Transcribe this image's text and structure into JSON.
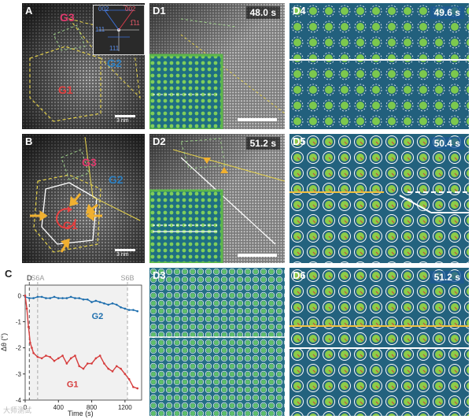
{
  "panels": {
    "A": {
      "label": "A",
      "grains": [
        "G3",
        "G2",
        "G1"
      ],
      "scale": "3 nm",
      "inset": {
        "labels": [
          "002",
          "̅002",
          "111",
          "1̅̅11",
          "111"
        ]
      }
    },
    "B": {
      "label": "B",
      "grains": [
        "G3",
        "G2",
        "G1"
      ],
      "scale": "3 nm"
    },
    "D1": {
      "label": "D1",
      "time": "48.0 s"
    },
    "D2": {
      "label": "D2",
      "time": "51.2 s"
    },
    "D3": {
      "label": "D3"
    },
    "D4": {
      "label": "D4",
      "time": "49.6 s"
    },
    "D5": {
      "label": "D5",
      "time": "50.4 s"
    },
    "D6": {
      "label": "D6",
      "time": "51.2 s"
    }
  },
  "chart_data": {
    "type": "line",
    "panel_label": "C",
    "xlabel": "Time (s)",
    "ylabel": "Δθ (°)",
    "xlim": [
      0,
      1400
    ],
    "ylim": [
      -4,
      0.4
    ],
    "xticks": [
      0,
      400,
      800,
      1200
    ],
    "yticks": [
      0,
      -1,
      -2,
      -3,
      -4
    ],
    "markers": [
      {
        "label": "D",
        "x": 50
      },
      {
        "label": "S6A",
        "x": 150
      },
      {
        "label": "S6B",
        "x": 1230
      }
    ],
    "series": [
      {
        "name": "G2",
        "color": "#1f6fae",
        "x": [
          0,
          50,
          100,
          150,
          200,
          250,
          300,
          350,
          400,
          450,
          500,
          550,
          600,
          650,
          700,
          750,
          800,
          850,
          900,
          950,
          1000,
          1050,
          1100,
          1150,
          1200,
          1250,
          1300,
          1350
        ],
        "y": [
          -0.05,
          -0.1,
          -0.1,
          -0.05,
          -0.05,
          -0.1,
          -0.1,
          -0.05,
          -0.1,
          -0.1,
          -0.1,
          -0.05,
          -0.1,
          -0.1,
          -0.15,
          -0.15,
          -0.25,
          -0.2,
          -0.25,
          -0.3,
          -0.35,
          -0.3,
          -0.35,
          -0.45,
          -0.5,
          -0.55,
          -0.55,
          -0.6
        ]
      },
      {
        "name": "G1",
        "color": "#d63c3c",
        "x": [
          0,
          20,
          40,
          60,
          80,
          100,
          150,
          200,
          250,
          300,
          350,
          400,
          450,
          500,
          550,
          600,
          650,
          700,
          750,
          800,
          850,
          900,
          950,
          1000,
          1050,
          1100,
          1150,
          1200,
          1250,
          1300,
          1350
        ],
        "y": [
          0,
          -0.5,
          -1.2,
          -1.8,
          -2.0,
          -2.2,
          -2.35,
          -2.4,
          -2.3,
          -2.35,
          -2.5,
          -2.4,
          -2.3,
          -2.6,
          -2.4,
          -2.3,
          -2.7,
          -2.8,
          -2.6,
          -2.6,
          -2.4,
          -2.3,
          -2.6,
          -2.8,
          -2.9,
          -2.7,
          -2.8,
          -3.0,
          -3.2,
          -3.5,
          -3.55
        ]
      }
    ]
  },
  "watermark": "大师测试"
}
